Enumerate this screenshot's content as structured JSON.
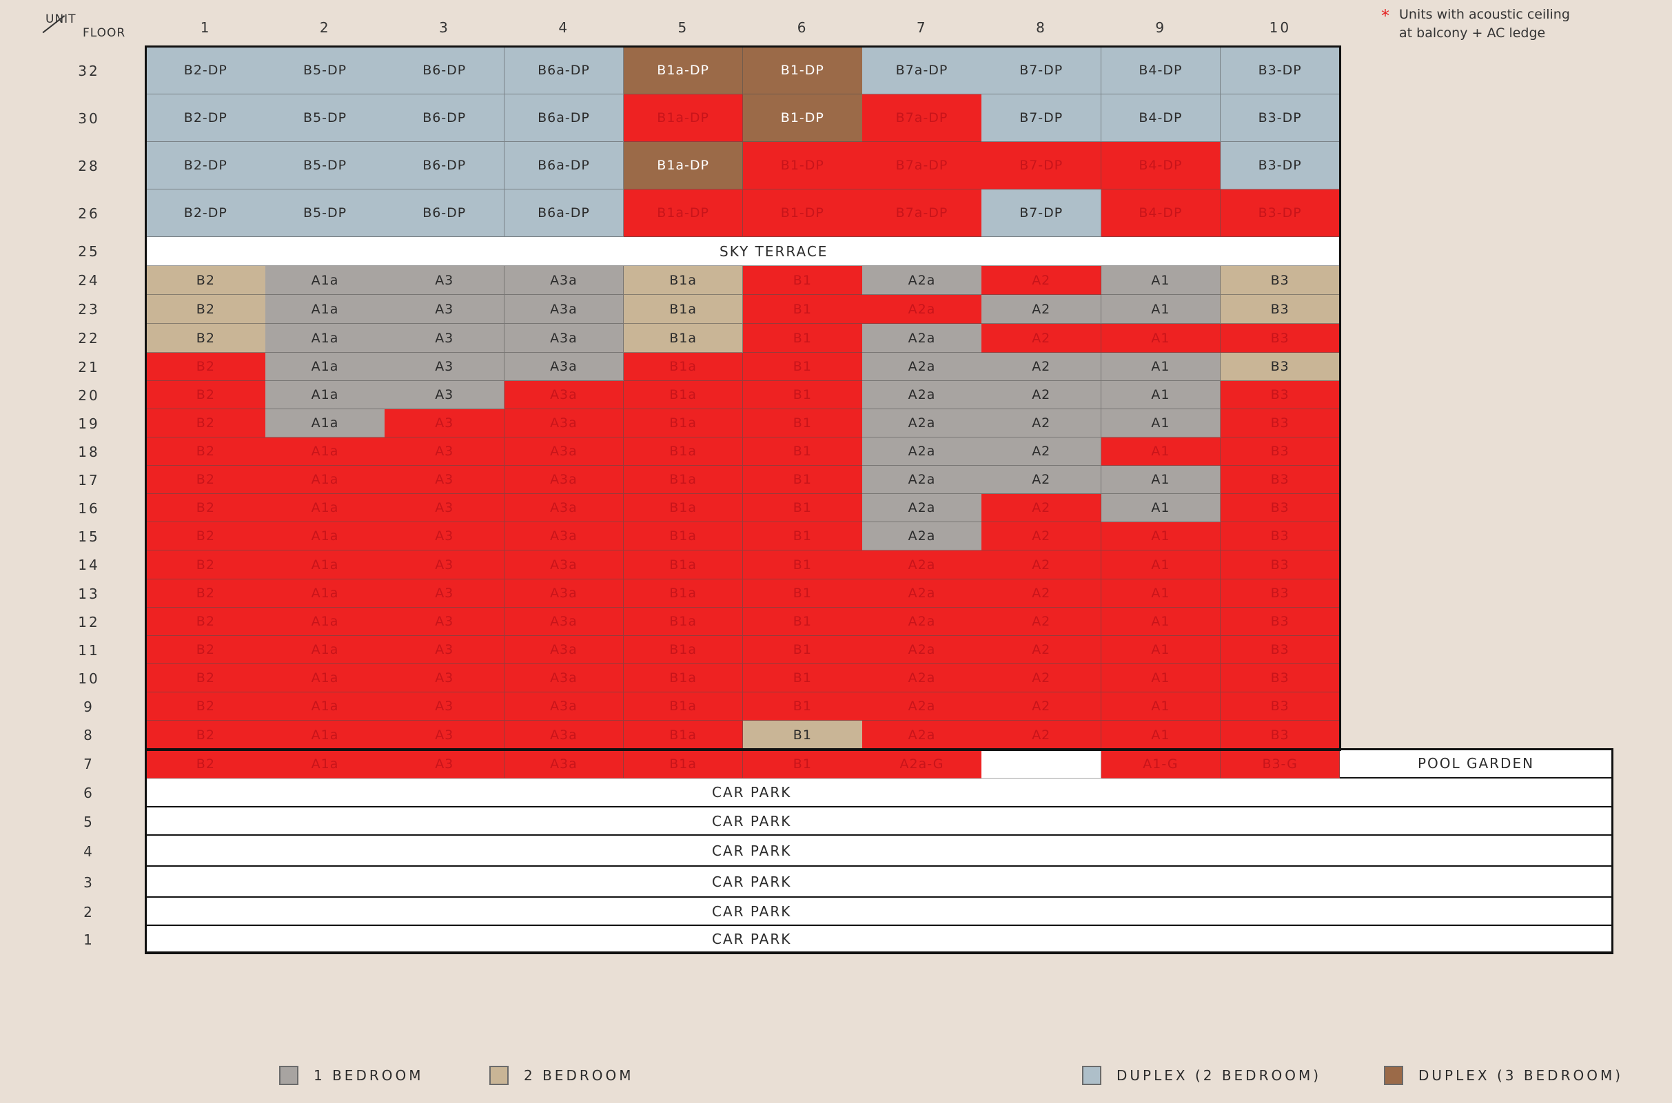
{
  "header": {
    "corner_unit": "UNIT",
    "corner_floor": "FLOOR",
    "columns": [
      "1",
      "2",
      "3",
      "4",
      "5",
      "6",
      "7",
      "8",
      "9",
      "10"
    ]
  },
  "note": {
    "symbol": "*",
    "line1": "Units with acoustic ceiling",
    "line2": "at balcony + AC ledge"
  },
  "colors": {
    "one_bed": "#a8a4a1",
    "two_bed": "#c9b596",
    "duplex_2": "#aebfc9",
    "duplex_3": "#9b6a48",
    "sold": "#ee2222",
    "white": "#ffffff"
  },
  "floors": [
    {
      "floor": "32",
      "units": [
        [
          "B2-DP",
          "d2"
        ],
        [
          "B5-DP",
          "d2"
        ],
        [
          "B6-DP",
          "d2"
        ],
        [
          "B6a-DP",
          "d2"
        ],
        [
          "B1a-DP",
          "d3"
        ],
        [
          "B1-DP",
          "d3"
        ],
        [
          "B7a-DP",
          "d2"
        ],
        [
          "B7-DP",
          "d2"
        ],
        [
          "B4-DP",
          "d2"
        ],
        [
          "B3-DP",
          "d2"
        ]
      ]
    },
    {
      "floor": "30",
      "units": [
        [
          "B2-DP",
          "d2"
        ],
        [
          "B5-DP",
          "d2"
        ],
        [
          "B6-DP",
          "d2"
        ],
        [
          "B6a-DP",
          "d2"
        ],
        [
          "B1a-DP",
          "s"
        ],
        [
          "B1-DP",
          "d3"
        ],
        [
          "B7a-DP",
          "s"
        ],
        [
          "B7-DP",
          "d2"
        ],
        [
          "B4-DP",
          "d2"
        ],
        [
          "B3-DP",
          "d2"
        ]
      ]
    },
    {
      "floor": "28",
      "units": [
        [
          "B2-DP",
          "d2"
        ],
        [
          "B5-DP",
          "d2"
        ],
        [
          "B6-DP",
          "d2"
        ],
        [
          "B6a-DP",
          "d2"
        ],
        [
          "B1a-DP",
          "d3"
        ],
        [
          "B1-DP",
          "s"
        ],
        [
          "B7a-DP",
          "s"
        ],
        [
          "B7-DP",
          "s"
        ],
        [
          "B4-DP",
          "s"
        ],
        [
          "B3-DP",
          "d2"
        ]
      ]
    },
    {
      "floor": "26",
      "units": [
        [
          "B2-DP",
          "d2"
        ],
        [
          "B5-DP",
          "d2"
        ],
        [
          "B6-DP",
          "d2"
        ],
        [
          "B6a-DP",
          "d2"
        ],
        [
          "B1a-DP",
          "s"
        ],
        [
          "B1-DP",
          "s"
        ],
        [
          "B7a-DP",
          "s"
        ],
        [
          "B7-DP",
          "d2"
        ],
        [
          "B4-DP",
          "s"
        ],
        [
          "B3-DP",
          "s"
        ]
      ]
    },
    {
      "floor": "25",
      "band": "SKY TERRACE"
    },
    {
      "floor": "24",
      "units": [
        [
          "B2",
          "b2"
        ],
        [
          "A1a",
          "b1"
        ],
        [
          "A3",
          "b1"
        ],
        [
          "A3a",
          "b1"
        ],
        [
          "B1a",
          "b2"
        ],
        [
          "B1",
          "s"
        ],
        [
          "A2a",
          "b1"
        ],
        [
          "A2",
          "s"
        ],
        [
          "A1",
          "b1"
        ],
        [
          "B3",
          "b2"
        ]
      ]
    },
    {
      "floor": "23",
      "units": [
        [
          "B2",
          "b2"
        ],
        [
          "A1a",
          "b1"
        ],
        [
          "A3",
          "b1"
        ],
        [
          "A3a",
          "b1"
        ],
        [
          "B1a",
          "b2"
        ],
        [
          "B1",
          "s"
        ],
        [
          "A2a",
          "s"
        ],
        [
          "A2",
          "b1"
        ],
        [
          "A1",
          "b1"
        ],
        [
          "B3",
          "b2"
        ]
      ]
    },
    {
      "floor": "22",
      "units": [
        [
          "B2",
          "b2"
        ],
        [
          "A1a",
          "b1"
        ],
        [
          "A3",
          "b1"
        ],
        [
          "A3a",
          "b1"
        ],
        [
          "B1a",
          "b2"
        ],
        [
          "B1",
          "s"
        ],
        [
          "A2a",
          "b1"
        ],
        [
          "A2",
          "s"
        ],
        [
          "A1",
          "s"
        ],
        [
          "B3",
          "s"
        ]
      ]
    },
    {
      "floor": "21",
      "units": [
        [
          "B2",
          "s"
        ],
        [
          "A1a",
          "b1"
        ],
        [
          "A3",
          "b1"
        ],
        [
          "A3a",
          "b1"
        ],
        [
          "B1a",
          "s"
        ],
        [
          "B1",
          "s"
        ],
        [
          "A2a",
          "b1"
        ],
        [
          "A2",
          "b1"
        ],
        [
          "A1",
          "b1"
        ],
        [
          "B3",
          "b2"
        ]
      ]
    },
    {
      "floor": "20",
      "units": [
        [
          "B2",
          "s"
        ],
        [
          "A1a",
          "b1"
        ],
        [
          "A3",
          "b1"
        ],
        [
          "A3a",
          "s"
        ],
        [
          "B1a",
          "s"
        ],
        [
          "B1",
          "s"
        ],
        [
          "A2a",
          "b1"
        ],
        [
          "A2",
          "b1"
        ],
        [
          "A1",
          "b1"
        ],
        [
          "B3",
          "s"
        ]
      ]
    },
    {
      "floor": "19",
      "units": [
        [
          "B2",
          "s"
        ],
        [
          "A1a",
          "b1"
        ],
        [
          "A3",
          "s"
        ],
        [
          "A3a",
          "s"
        ],
        [
          "B1a",
          "s"
        ],
        [
          "B1",
          "s"
        ],
        [
          "A2a",
          "b1"
        ],
        [
          "A2",
          "b1"
        ],
        [
          "A1",
          "b1"
        ],
        [
          "B3",
          "s"
        ]
      ]
    },
    {
      "floor": "18",
      "units": [
        [
          "B2",
          "s"
        ],
        [
          "A1a",
          "s"
        ],
        [
          "A3",
          "s"
        ],
        [
          "A3a",
          "s"
        ],
        [
          "B1a",
          "s"
        ],
        [
          "B1",
          "s"
        ],
        [
          "A2a",
          "b1"
        ],
        [
          "A2",
          "b1"
        ],
        [
          "A1",
          "s"
        ],
        [
          "B3",
          "s"
        ]
      ]
    },
    {
      "floor": "17",
      "units": [
        [
          "B2",
          "s"
        ],
        [
          "A1a",
          "s"
        ],
        [
          "A3",
          "s"
        ],
        [
          "A3a",
          "s"
        ],
        [
          "B1a",
          "s"
        ],
        [
          "B1",
          "s"
        ],
        [
          "A2a",
          "b1"
        ],
        [
          "A2",
          "b1"
        ],
        [
          "A1",
          "b1"
        ],
        [
          "B3",
          "s"
        ]
      ]
    },
    {
      "floor": "16",
      "units": [
        [
          "B2",
          "s"
        ],
        [
          "A1a",
          "s"
        ],
        [
          "A3",
          "s"
        ],
        [
          "A3a",
          "s"
        ],
        [
          "B1a",
          "s"
        ],
        [
          "B1",
          "s"
        ],
        [
          "A2a",
          "b1"
        ],
        [
          "A2",
          "s"
        ],
        [
          "A1",
          "b1"
        ],
        [
          "B3",
          "s"
        ]
      ]
    },
    {
      "floor": "15",
      "units": [
        [
          "B2",
          "s"
        ],
        [
          "A1a",
          "s"
        ],
        [
          "A3",
          "s"
        ],
        [
          "A3a",
          "s"
        ],
        [
          "B1a",
          "s"
        ],
        [
          "B1",
          "s"
        ],
        [
          "A2a",
          "b1"
        ],
        [
          "A2",
          "s"
        ],
        [
          "A1",
          "s"
        ],
        [
          "B3",
          "s"
        ]
      ]
    },
    {
      "floor": "14",
      "units": [
        [
          "B2",
          "s"
        ],
        [
          "A1a",
          "s"
        ],
        [
          "A3",
          "s"
        ],
        [
          "A3a",
          "s"
        ],
        [
          "B1a",
          "s"
        ],
        [
          "B1",
          "s"
        ],
        [
          "A2a",
          "s"
        ],
        [
          "A2",
          "s"
        ],
        [
          "A1",
          "s"
        ],
        [
          "B3",
          "s"
        ]
      ]
    },
    {
      "floor": "13",
      "units": [
        [
          "B2",
          "s"
        ],
        [
          "A1a",
          "s"
        ],
        [
          "A3",
          "s"
        ],
        [
          "A3a",
          "s"
        ],
        [
          "B1a",
          "s"
        ],
        [
          "B1",
          "s"
        ],
        [
          "A2a",
          "s"
        ],
        [
          "A2",
          "s"
        ],
        [
          "A1",
          "s"
        ],
        [
          "B3",
          "s"
        ]
      ]
    },
    {
      "floor": "12",
      "units": [
        [
          "B2",
          "s"
        ],
        [
          "A1a",
          "s"
        ],
        [
          "A3",
          "s"
        ],
        [
          "A3a",
          "s"
        ],
        [
          "B1a",
          "s"
        ],
        [
          "B1",
          "s"
        ],
        [
          "A2a",
          "s"
        ],
        [
          "A2",
          "s"
        ],
        [
          "A1",
          "s"
        ],
        [
          "B3",
          "s"
        ]
      ]
    },
    {
      "floor": "11",
      "units": [
        [
          "B2",
          "s"
        ],
        [
          "A1a",
          "s"
        ],
        [
          "A3",
          "s"
        ],
        [
          "A3a",
          "s"
        ],
        [
          "B1a",
          "s"
        ],
        [
          "B1",
          "s"
        ],
        [
          "A2a",
          "s"
        ],
        [
          "A2",
          "s"
        ],
        [
          "A1",
          "s"
        ],
        [
          "B3",
          "s"
        ]
      ]
    },
    {
      "floor": "10",
      "units": [
        [
          "B2",
          "s"
        ],
        [
          "A1a",
          "s"
        ],
        [
          "A3",
          "s"
        ],
        [
          "A3a",
          "s"
        ],
        [
          "B1a",
          "s"
        ],
        [
          "B1",
          "s"
        ],
        [
          "A2a",
          "s"
        ],
        [
          "A2",
          "s"
        ],
        [
          "A1",
          "s"
        ],
        [
          "B3",
          "s"
        ]
      ]
    },
    {
      "floor": "9",
      "units": [
        [
          "B2",
          "s"
        ],
        [
          "A1a",
          "s"
        ],
        [
          "A3",
          "s"
        ],
        [
          "A3a",
          "s"
        ],
        [
          "B1a",
          "s"
        ],
        [
          "B1",
          "s"
        ],
        [
          "A2a",
          "s"
        ],
        [
          "A2",
          "s"
        ],
        [
          "A1",
          "s"
        ],
        [
          "B3",
          "s"
        ]
      ]
    },
    {
      "floor": "8",
      "units": [
        [
          "B2",
          "s"
        ],
        [
          "A1a",
          "s"
        ],
        [
          "A3",
          "s"
        ],
        [
          "A3a",
          "s"
        ],
        [
          "B1a",
          "s"
        ],
        [
          "B1",
          "b2"
        ],
        [
          "A2a",
          "s"
        ],
        [
          "A2",
          "s"
        ],
        [
          "A1",
          "s"
        ],
        [
          "B3",
          "s"
        ]
      ]
    },
    {
      "floor": "7",
      "units": [
        [
          "B2",
          "s"
        ],
        [
          "A1a",
          "s"
        ],
        [
          "A3",
          "s"
        ],
        [
          "A3a",
          "s"
        ],
        [
          "B1a",
          "s"
        ],
        [
          "B1",
          "s"
        ],
        [
          "A2a-G",
          "s"
        ],
        [
          "",
          "w"
        ],
        [
          "A1-G",
          "s"
        ],
        [
          "B3-G",
          "s"
        ]
      ],
      "side_band": "POOL GARDEN"
    },
    {
      "floor": "6",
      "band": "CAR PARK"
    },
    {
      "floor": "5",
      "band": "CAR PARK"
    },
    {
      "floor": "4",
      "band": "CAR PARK"
    },
    {
      "floor": "3",
      "band": "CAR PARK"
    },
    {
      "floor": "2",
      "band": "CAR PARK"
    },
    {
      "floor": "1",
      "band": "CAR PARK"
    }
  ],
  "legend": [
    {
      "key": "b1",
      "label": "1 BEDROOM"
    },
    {
      "key": "b2",
      "label": "2 BEDROOM"
    },
    {
      "key": "d2",
      "label": "DUPLEX (2 BEDROOM)"
    },
    {
      "key": "d3",
      "label": "DUPLEX (3 BEDROOM)"
    }
  ]
}
